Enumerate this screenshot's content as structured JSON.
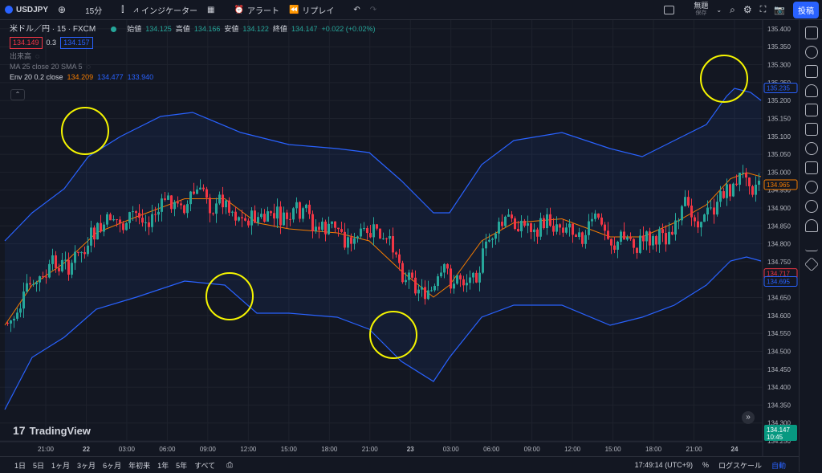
{
  "topbar": {
    "symbol": "USDJPY",
    "interval": "15分",
    "indicators": "インジケーター",
    "alert": "アラート",
    "replay": "リプレイ",
    "layout_name": "無題",
    "layout_status": "保存",
    "post": "投稿"
  },
  "legend": {
    "title": "米ドル／円 · 15 · FXCM",
    "open_k": "始値",
    "open_v": "134.125",
    "high_k": "高値",
    "high_v": "134.166",
    "low_k": "安値",
    "low_v": "134.122",
    "close_k": "終値",
    "close_v": "134.147",
    "change": "+0.022 (+0.02%)",
    "bid": "134.149",
    "spread": "0.3",
    "ask": "134.157",
    "volume": "出来高",
    "ma": "MA 25 close 20 SMA 5",
    "env": "Env 20 0.2 close",
    "env_basis": "134.209",
    "env_upper": "134.477",
    "env_lower": "133.940"
  },
  "price_axis": {
    "ticks": [
      "135.400",
      "135.350",
      "135.300",
      "135.250",
      "135.200",
      "135.150",
      "135.100",
      "135.050",
      "135.000",
      "134.950",
      "134.900",
      "134.850",
      "134.800",
      "134.750",
      "134.700",
      "134.650",
      "134.600",
      "134.550",
      "134.500",
      "134.450",
      "134.400",
      "134.350",
      "134.300",
      "134.250"
    ],
    "labels": [
      {
        "text": "135.235",
        "price": 135.235,
        "color": "#2962ff",
        "fill": false
      },
      {
        "text": "134.965",
        "price": 134.965,
        "color": "#f57c00",
        "fill": false
      },
      {
        "text": "134.717",
        "price": 134.717,
        "color": "#f23645",
        "fill": false
      },
      {
        "text": "134.695",
        "price": 134.695,
        "color": "#2962ff",
        "fill": false
      }
    ],
    "last_price": "134.147",
    "countdown": "10:45"
  },
  "time_axis": [
    "21:00",
    "22",
    "03:00",
    "06:00",
    "09:00",
    "12:00",
    "15:00",
    "18:00",
    "21:00",
    "23",
    "03:00",
    "06:00",
    "09:00",
    "12:00",
    "15:00",
    "18:00",
    "21:00",
    "24"
  ],
  "bottombar": {
    "ranges": [
      "1日",
      "5日",
      "1ヶ月",
      "3ヶ月",
      "6ヶ月",
      "年初来",
      "1年",
      "5年",
      "すべて"
    ],
    "clock": "17:49:14 (UTC+9)",
    "percent": "%",
    "log": "ログスケール",
    "auto": "自動"
  },
  "branding": "TradingView",
  "colors": {
    "up": "#26a69a",
    "down": "#f23645",
    "env_band": "#2962ff",
    "basis": "#f57c00",
    "highlight": "#f5f500"
  },
  "chart_data": {
    "type": "candlestick",
    "ylim": [
      134.25,
      135.42
    ],
    "series": [
      {
        "name": "Env 20 0.2 close"
      }
    ],
    "envelope_note": "upper/lower bands and orange basis line",
    "highlight_circles": 4
  }
}
